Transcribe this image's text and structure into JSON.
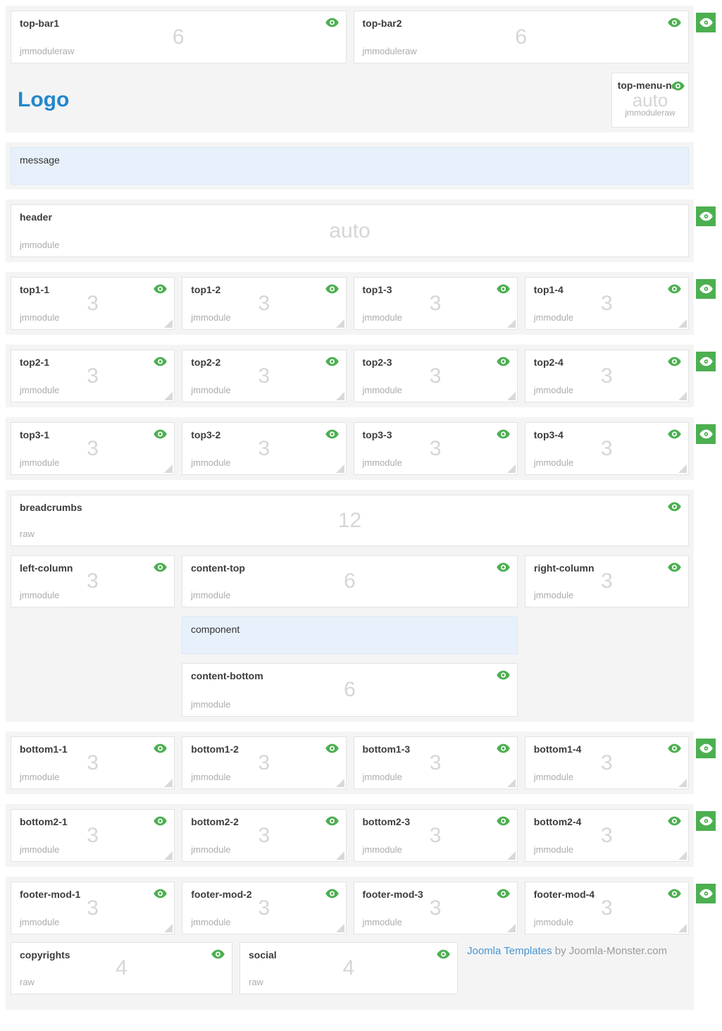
{
  "logo_text": "Logo",
  "credit": {
    "link": "Joomla Templates",
    "suffix": " by Joomla-Monster.com"
  },
  "colors": {
    "accent_green": "#4caf50",
    "link_blue": "#4795d2",
    "logo_blue": "#2287cd",
    "panel_blue": "#e8f1fb",
    "section_gray": "#f4f4f4"
  },
  "positions": {
    "topbar": [
      {
        "title": "top-bar1",
        "type": "jmmoduleraw",
        "size": "6"
      },
      {
        "title": "top-bar2",
        "type": "jmmoduleraw",
        "size": "6"
      }
    ],
    "topmenu": {
      "title": "top-menu-nav",
      "type": "jmmoduleraw",
      "size": "auto"
    },
    "message": {
      "title": "message"
    },
    "header": {
      "title": "header",
      "type": "jmmodule",
      "size": "auto"
    },
    "top1": [
      {
        "title": "top1-1",
        "type": "jmmodule",
        "size": "3"
      },
      {
        "title": "top1-2",
        "type": "jmmodule",
        "size": "3"
      },
      {
        "title": "top1-3",
        "type": "jmmodule",
        "size": "3"
      },
      {
        "title": "top1-4",
        "type": "jmmodule",
        "size": "3"
      }
    ],
    "top2": [
      {
        "title": "top2-1",
        "type": "jmmodule",
        "size": "3"
      },
      {
        "title": "top2-2",
        "type": "jmmodule",
        "size": "3"
      },
      {
        "title": "top2-3",
        "type": "jmmodule",
        "size": "3"
      },
      {
        "title": "top2-4",
        "type": "jmmodule",
        "size": "3"
      }
    ],
    "top3": [
      {
        "title": "top3-1",
        "type": "jmmodule",
        "size": "3"
      },
      {
        "title": "top3-2",
        "type": "jmmodule",
        "size": "3"
      },
      {
        "title": "top3-3",
        "type": "jmmodule",
        "size": "3"
      },
      {
        "title": "top3-4",
        "type": "jmmodule",
        "size": "3"
      }
    ],
    "breadcrumbs": {
      "title": "breadcrumbs",
      "type": "raw",
      "size": "12"
    },
    "left_column": {
      "title": "left-column",
      "type": "jmmodule",
      "size": "3"
    },
    "content_top": {
      "title": "content-top",
      "type": "jmmodule",
      "size": "6"
    },
    "component": {
      "title": "component"
    },
    "content_bottom": {
      "title": "content-bottom",
      "type": "jmmodule",
      "size": "6"
    },
    "right_column": {
      "title": "right-column",
      "type": "jmmodule",
      "size": "3"
    },
    "bottom1": [
      {
        "title": "bottom1-1",
        "type": "jmmodule",
        "size": "3"
      },
      {
        "title": "bottom1-2",
        "type": "jmmodule",
        "size": "3"
      },
      {
        "title": "bottom1-3",
        "type": "jmmodule",
        "size": "3"
      },
      {
        "title": "bottom1-4",
        "type": "jmmodule",
        "size": "3"
      }
    ],
    "bottom2": [
      {
        "title": "bottom2-1",
        "type": "jmmodule",
        "size": "3"
      },
      {
        "title": "bottom2-2",
        "type": "jmmodule",
        "size": "3"
      },
      {
        "title": "bottom2-3",
        "type": "jmmodule",
        "size": "3"
      },
      {
        "title": "bottom2-4",
        "type": "jmmodule",
        "size": "3"
      }
    ],
    "footer": [
      {
        "title": "footer-mod-1",
        "type": "jmmodule",
        "size": "3"
      },
      {
        "title": "footer-mod-2",
        "type": "jmmodule",
        "size": "3"
      },
      {
        "title": "footer-mod-3",
        "type": "jmmodule",
        "size": "3"
      },
      {
        "title": "footer-mod-4",
        "type": "jmmodule",
        "size": "3"
      }
    ],
    "copyrights": {
      "title": "copyrights",
      "type": "raw",
      "size": "4"
    },
    "social": {
      "title": "social",
      "type": "raw",
      "size": "4"
    }
  }
}
